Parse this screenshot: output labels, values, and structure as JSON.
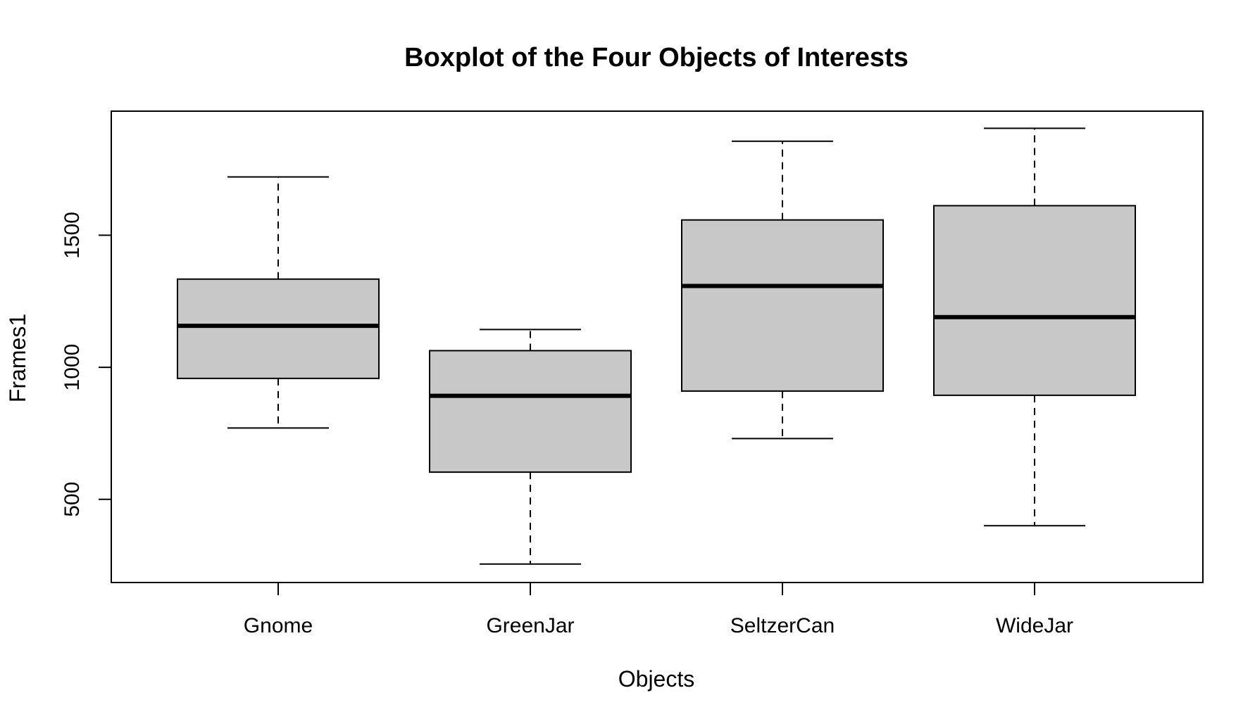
{
  "chart_data": {
    "type": "boxplot",
    "title": "Boxplot of the Four Objects of Interests",
    "xlabel": "Objects",
    "ylabel": "Frames1",
    "categories": [
      "Gnome",
      "GreenJar",
      "SeltzerCan",
      "WideJar"
    ],
    "boxes": [
      {
        "category": "Gnome",
        "min": 770,
        "q1": 958,
        "median": 1157,
        "q3": 1334,
        "max": 1721
      },
      {
        "category": "GreenJar",
        "min": 255,
        "q1": 603,
        "median": 892,
        "q3": 1063,
        "max": 1143
      },
      {
        "category": "SeltzerCan",
        "min": 730,
        "q1": 910,
        "median": 1308,
        "q3": 1558,
        "max": 1856
      },
      {
        "category": "WideJar",
        "min": 400,
        "q1": 894,
        "median": 1190,
        "q3": 1612,
        "max": 1905
      }
    ],
    "yticks": [
      500,
      1000,
      1500
    ],
    "ylim": [
      185,
      1970
    ],
    "box_color": "#c8c8c8",
    "grid": false,
    "legend": "none"
  }
}
